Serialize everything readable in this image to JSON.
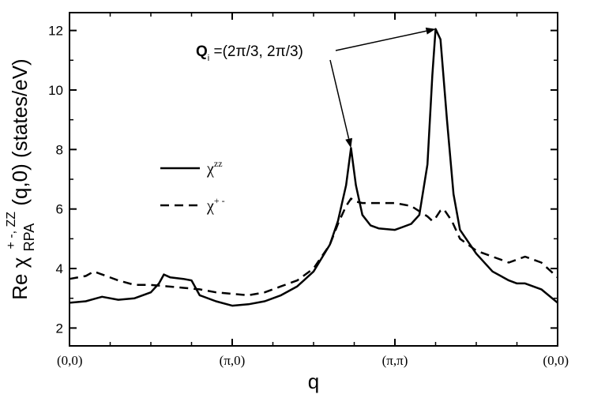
{
  "chart_data": {
    "type": "line",
    "xlabel": "q",
    "ylabel": {
      "prefix": "Re χ",
      "sub": "RPA",
      "sup": "+ -, ZZ",
      "suffix": " (q,0) (states/eV)"
    },
    "ylim": [
      1.4,
      12.6
    ],
    "yticks": [
      2,
      4,
      6,
      8,
      10,
      12
    ],
    "xlim": [
      0,
      3
    ],
    "xticks": [
      {
        "x": 0,
        "label": "(0,0)"
      },
      {
        "x": 1,
        "label": "(π,0)"
      },
      {
        "x": 2,
        "label": "(π,π)"
      },
      {
        "x": 3,
        "label": "(0,0)"
      }
    ],
    "x_minor_ticks": [
      0.25,
      0.5,
      0.75,
      1.25,
      1.5,
      1.75,
      2.25,
      2.5,
      2.75
    ],
    "legend": {
      "placement": "left",
      "entries": [
        {
          "series": "zz",
          "base": "χ",
          "sup": "zz",
          "style": "solid"
        },
        {
          "series": "pm",
          "base": "χ",
          "sup": "+ -",
          "style": "dashed"
        }
      ]
    },
    "annotation": {
      "label_bold": "Q",
      "label_sub": "i",
      "label_rest": " =(2π/3, 2π/3)",
      "targets": [
        {
          "x": 1.73,
          "y": 8.05
        },
        {
          "x": 2.25,
          "y": 12.05
        }
      ]
    },
    "series": [
      {
        "id": "zz",
        "style": "solid",
        "x": [
          0,
          0.1,
          0.2,
          0.3,
          0.4,
          0.5,
          0.55,
          0.58,
          0.62,
          0.7,
          0.75,
          0.8,
          0.9,
          1.0,
          1.1,
          1.2,
          1.3,
          1.4,
          1.5,
          1.6,
          1.65,
          1.7,
          1.73,
          1.76,
          1.8,
          1.85,
          1.9,
          2.0,
          2.1,
          2.15,
          2.2,
          2.23,
          2.25,
          2.28,
          2.32,
          2.36,
          2.4,
          2.5,
          2.6,
          2.7,
          2.75,
          2.8,
          2.9,
          3.0
        ],
        "y": [
          2.85,
          2.9,
          3.05,
          2.95,
          3.0,
          3.2,
          3.5,
          3.8,
          3.7,
          3.65,
          3.6,
          3.1,
          2.9,
          2.75,
          2.8,
          2.9,
          3.1,
          3.4,
          3.9,
          4.8,
          5.6,
          6.8,
          8.05,
          6.8,
          5.8,
          5.45,
          5.35,
          5.3,
          5.5,
          5.8,
          7.5,
          10.5,
          12.05,
          11.7,
          9.0,
          6.5,
          5.3,
          4.5,
          3.9,
          3.6,
          3.5,
          3.5,
          3.3,
          2.85
        ]
      },
      {
        "id": "pm",
        "style": "dashed",
        "x": [
          0,
          0.1,
          0.15,
          0.2,
          0.3,
          0.4,
          0.5,
          0.6,
          0.7,
          0.8,
          0.9,
          1.0,
          1.1,
          1.2,
          1.3,
          1.4,
          1.5,
          1.6,
          1.65,
          1.7,
          1.73,
          1.76,
          1.8,
          1.9,
          2.0,
          2.1,
          2.2,
          2.23,
          2.25,
          2.28,
          2.3,
          2.35,
          2.4,
          2.5,
          2.6,
          2.7,
          2.75,
          2.8,
          2.9,
          3.0
        ],
        "y": [
          3.65,
          3.75,
          3.9,
          3.8,
          3.6,
          3.45,
          3.45,
          3.4,
          3.35,
          3.3,
          3.2,
          3.15,
          3.1,
          3.2,
          3.4,
          3.6,
          4.0,
          4.8,
          5.5,
          6.1,
          6.35,
          6.25,
          6.2,
          6.2,
          6.2,
          6.1,
          5.75,
          5.6,
          5.7,
          5.95,
          6.0,
          5.6,
          5.0,
          4.6,
          4.4,
          4.2,
          4.3,
          4.4,
          4.2,
          3.7
        ]
      }
    ]
  }
}
